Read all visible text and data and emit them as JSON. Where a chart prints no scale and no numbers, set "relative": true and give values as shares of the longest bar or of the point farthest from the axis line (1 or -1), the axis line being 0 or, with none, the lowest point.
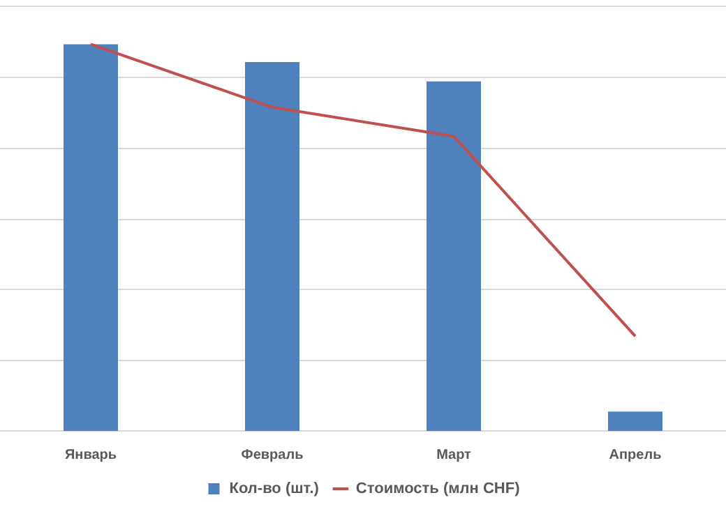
{
  "chart_data": {
    "type": "bar",
    "relative": true,
    "categories": [
      "Январь",
      "Февраль",
      "Март",
      "Апрель"
    ],
    "series": [
      {
        "name": "Кол-во (шт.)",
        "color": "#4f81bd",
        "values": [
          1,
          0.954,
          0.904,
          0.05
        ]
      },
      {
        "name": "Стоимость (млн CHF)",
        "type": "line",
        "color": "#c0504d",
        "values": [
          1,
          0.837,
          0.762,
          0.245
        ],
        "marker": "none"
      }
    ],
    "grid": "y",
    "legend": "bottom"
  }
}
